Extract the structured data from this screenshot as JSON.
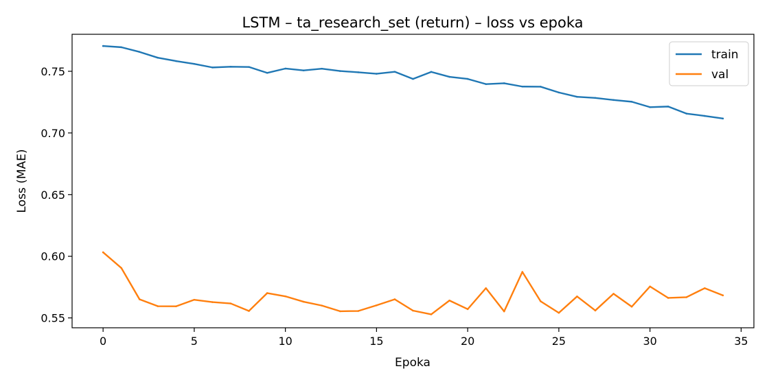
{
  "chart_data": {
    "type": "line",
    "title": "LSTM – ta_research_set (return) – loss vs epoka",
    "xlabel": "Epoka",
    "ylabel": "Loss (MAE)",
    "xlim": [
      -1.7,
      35.7
    ],
    "ylim": [
      0.542,
      0.78
    ],
    "xticks": [
      0,
      5,
      10,
      15,
      20,
      25,
      30,
      35
    ],
    "yticks": [
      0.55,
      0.6,
      0.65,
      0.7,
      0.75
    ],
    "ytick_labels": [
      "0.55",
      "0.60",
      "0.65",
      "0.70",
      "0.75"
    ],
    "grid": false,
    "legend_position": "top-right",
    "x": [
      0,
      1,
      2,
      3,
      4,
      5,
      6,
      7,
      8,
      9,
      10,
      11,
      12,
      13,
      14,
      15,
      16,
      17,
      18,
      19,
      20,
      21,
      22,
      23,
      24,
      25,
      26,
      27,
      28,
      29,
      30,
      31,
      32,
      33,
      34
    ],
    "series": [
      {
        "name": "train",
        "color": "#1f77b4",
        "values": [
          0.7705,
          0.7695,
          0.7657,
          0.761,
          0.7583,
          0.756,
          0.7531,
          0.7537,
          0.7535,
          0.7487,
          0.7522,
          0.7507,
          0.7521,
          0.7502,
          0.7492,
          0.748,
          0.7496,
          0.7438,
          0.7495,
          0.7455,
          0.7438,
          0.7396,
          0.7403,
          0.7376,
          0.7375,
          0.7328,
          0.7293,
          0.7284,
          0.7267,
          0.7253,
          0.7209,
          0.7214,
          0.7157,
          0.7138,
          0.7117
        ]
      },
      {
        "name": "val",
        "color": "#ff7f0e",
        "values": [
          0.6032,
          0.5905,
          0.5651,
          0.5595,
          0.5594,
          0.5647,
          0.5628,
          0.5617,
          0.5556,
          0.5701,
          0.5675,
          0.5631,
          0.56,
          0.5554,
          0.5556,
          0.5602,
          0.5651,
          0.5559,
          0.5529,
          0.5641,
          0.5571,
          0.5741,
          0.5553,
          0.5873,
          0.5635,
          0.5541,
          0.5674,
          0.556,
          0.5696,
          0.5591,
          0.5755,
          0.5662,
          0.5668,
          0.5741,
          0.5683
        ]
      }
    ]
  }
}
